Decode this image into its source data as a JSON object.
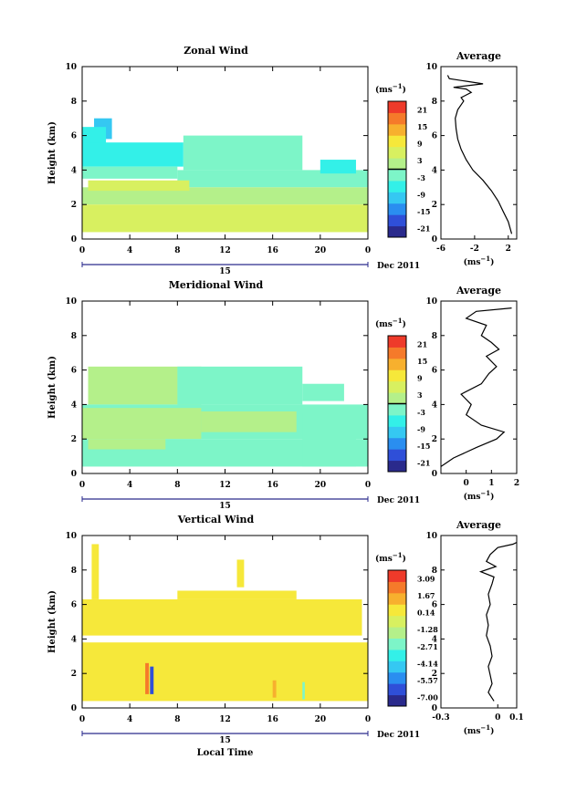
{
  "chart_data": [
    {
      "type": "heatmap",
      "title": "Zonal Wind",
      "xlabel": "",
      "ylabel": "Height (km)",
      "x_ticks": [
        "0",
        "4",
        "8",
        "12",
        "16",
        "20",
        "0"
      ],
      "y_ticks": [
        "0",
        "2",
        "4",
        "6",
        "8",
        "10"
      ],
      "xlim": [
        0,
        24
      ],
      "ylim": [
        0,
        10
      ],
      "date_day": "15",
      "date_label": "Dec 2011",
      "colorbar": {
        "unit": "(ms",
        "unit_exp": "−1",
        "unit_close": ")",
        "ticks": [
          "21",
          "15",
          "9",
          "3",
          "-3",
          "-9",
          "-15",
          "-21"
        ],
        "vmin": -24,
        "vmax": 24,
        "contour_at": 0
      },
      "cells": [
        {
          "t0": 1.0,
          "t1": 2.5,
          "h0": 5.8,
          "h1": 7.0,
          "v": -10
        },
        {
          "t0": 0.0,
          "t1": 2.0,
          "h0": 5.5,
          "h1": 6.5,
          "v": -8
        },
        {
          "t0": 0.0,
          "t1": 8.5,
          "h0": 4.2,
          "h1": 5.6,
          "v": -5
        },
        {
          "t0": 8.5,
          "t1": 18.5,
          "h0": 4.0,
          "h1": 6.0,
          "v": -3
        },
        {
          "t0": 0.0,
          "t1": 8.0,
          "h0": 3.5,
          "h1": 4.2,
          "v": -3
        },
        {
          "t0": 8.0,
          "t1": 24.0,
          "h0": 3.0,
          "h1": 4.0,
          "v": -4
        },
        {
          "t0": 20.0,
          "t1": 23.0,
          "h0": 3.8,
          "h1": 4.6,
          "v": -5
        },
        {
          "t0": 0.0,
          "t1": 24.0,
          "h0": 2.0,
          "h1": 3.0,
          "v": 3
        },
        {
          "t0": 0.0,
          "t1": 24.0,
          "h0": 0.4,
          "h1": 2.0,
          "v": 5
        },
        {
          "t0": 0.5,
          "t1": 9.0,
          "h0": 2.8,
          "h1": 3.4,
          "v": 5
        }
      ],
      "avg_profile": {
        "title": "Average",
        "x": [
          2.4,
          2.0,
          1.4,
          0.8,
          0.0,
          -1.0,
          -2.2,
          -3.0,
          -3.6,
          -4.0,
          -4.2,
          -4.3,
          -4.0,
          -3.3,
          -3.6,
          -2.4,
          -3.0,
          -4.5,
          -1.0,
          -5.0,
          -5.2
        ],
        "y": [
          0.3,
          1.0,
          1.6,
          2.2,
          2.8,
          3.4,
          4.0,
          4.6,
          5.2,
          5.8,
          6.4,
          7.0,
          7.5,
          8.0,
          8.2,
          8.5,
          8.7,
          8.8,
          9.0,
          9.3,
          9.5
        ],
        "x_ticks": [
          "-6",
          "-2",
          "2"
        ],
        "xlim": [
          -6,
          3
        ],
        "y_ticks": [
          "0",
          "2",
          "4",
          "6",
          "8",
          "10"
        ],
        "xlabel": "(ms",
        "xlabel_exp": "−1",
        "xlabel_close": ")"
      }
    },
    {
      "type": "heatmap",
      "title": "Meridional Wind",
      "xlabel": "",
      "ylabel": "Height (km)",
      "x_ticks": [
        "0",
        "4",
        "8",
        "12",
        "16",
        "20",
        "0"
      ],
      "y_ticks": [
        "0",
        "2",
        "4",
        "6",
        "8",
        "10"
      ],
      "xlim": [
        0,
        24
      ],
      "ylim": [
        0,
        10
      ],
      "date_day": "15",
      "date_label": "Dec 2011",
      "colorbar": {
        "unit": "(ms",
        "unit_exp": "−1",
        "unit_close": ")",
        "ticks": [
          "21",
          "15",
          "9",
          "3",
          "-3",
          "-9",
          "-15",
          "-21"
        ],
        "vmin": -24,
        "vmax": 24,
        "contour_at": 0
      },
      "cells": [
        {
          "t0": 0.5,
          "t1": 10.0,
          "h0": 4.0,
          "h1": 6.2,
          "v": 3
        },
        {
          "t0": 8.0,
          "t1": 18.5,
          "h0": 4.0,
          "h1": 6.2,
          "v": -3
        },
        {
          "t0": 18.5,
          "t1": 22.0,
          "h0": 4.2,
          "h1": 5.2,
          "v": -3
        },
        {
          "t0": 0.0,
          "t1": 24.0,
          "h0": 2.0,
          "h1": 4.0,
          "v": -2
        },
        {
          "t0": 0.0,
          "t1": 10.0,
          "h0": 2.0,
          "h1": 3.8,
          "v": 3
        },
        {
          "t0": 10.0,
          "t1": 18.0,
          "h0": 2.4,
          "h1": 3.6,
          "v": 2
        },
        {
          "t0": 0.0,
          "t1": 24.0,
          "h0": 0.4,
          "h1": 2.0,
          "v": -4
        },
        {
          "t0": 0.5,
          "t1": 7.0,
          "h0": 1.4,
          "h1": 2.0,
          "v": 2
        },
        {
          "t0": 18.5,
          "t1": 23.0,
          "h0": 0.4,
          "h1": 3.5,
          "v": -4
        }
      ],
      "avg_profile": {
        "title": "Average",
        "x": [
          -1.0,
          -0.5,
          0.4,
          1.2,
          1.5,
          0.6,
          0.0,
          0.2,
          -0.2,
          0.6,
          0.9,
          1.2,
          0.8,
          1.3,
          1.0,
          0.6,
          0.8,
          0.0,
          0.4,
          1.8
        ],
        "y": [
          0.4,
          0.9,
          1.5,
          2.0,
          2.4,
          2.8,
          3.4,
          4.0,
          4.6,
          5.2,
          5.8,
          6.2,
          6.8,
          7.2,
          7.6,
          8.0,
          8.6,
          9.0,
          9.4,
          9.6
        ],
        "x_ticks": [
          "0",
          "1",
          "2"
        ],
        "xlim": [
          -1,
          2
        ],
        "y_ticks": [
          "0",
          "2",
          "4",
          "6",
          "8",
          "10"
        ],
        "xlabel": "(ms",
        "xlabel_exp": "−1",
        "xlabel_close": ")"
      }
    },
    {
      "type": "heatmap",
      "title": "Vertical Wind",
      "xlabel": "Local Time",
      "ylabel": "Height (km)",
      "x_ticks": [
        "0",
        "4",
        "8",
        "12",
        "16",
        "20",
        "0"
      ],
      "y_ticks": [
        "0",
        "2",
        "4",
        "6",
        "8",
        "10"
      ],
      "xlim": [
        0,
        24
      ],
      "ylim": [
        0,
        10
      ],
      "date_day": "15",
      "date_label": "Dec 2011",
      "colorbar": {
        "unit": "(ms",
        "unit_exp": "−1",
        "unit_close": ")",
        "ticks": [
          "3.09",
          "1.67",
          "0.14",
          "-1.28",
          "-2.71",
          "-4.14",
          "-5.57",
          "-7.00"
        ],
        "vmin": -8.0,
        "vmax": 3.8,
        "contour_at": null
      },
      "cells": [
        {
          "t0": 0.0,
          "t1": 23.5,
          "h0": 4.2,
          "h1": 6.3,
          "v": 0.4
        },
        {
          "t0": 8.0,
          "t1": 18.0,
          "h0": 6.3,
          "h1": 6.8,
          "v": 0.4
        },
        {
          "t0": 0.0,
          "t1": 24.0,
          "h0": 0.4,
          "h1": 3.8,
          "v": 0.3
        },
        {
          "t0": 5.3,
          "t1": 5.6,
          "h0": 0.8,
          "h1": 2.6,
          "v": 2.2
        },
        {
          "t0": 5.7,
          "t1": 6.0,
          "h0": 0.8,
          "h1": 2.4,
          "v": -6.5
        },
        {
          "t0": 18.5,
          "t1": 18.7,
          "h0": 0.5,
          "h1": 1.5,
          "v": -3.0
        },
        {
          "t0": 16.0,
          "t1": 16.3,
          "h0": 0.6,
          "h1": 1.6,
          "v": 1.8
        },
        {
          "t0": 0.8,
          "t1": 1.4,
          "h0": 6.3,
          "h1": 9.5,
          "v": 0.4
        },
        {
          "t0": 13.0,
          "t1": 13.6,
          "h0": 7.0,
          "h1": 8.6,
          "v": 0.4
        }
      ],
      "avg_profile": {
        "title": "Average",
        "x": [
          -0.02,
          -0.05,
          -0.03,
          -0.04,
          -0.05,
          -0.03,
          -0.04,
          -0.06,
          -0.05,
          -0.06,
          -0.04,
          -0.05,
          -0.03,
          -0.02,
          -0.09,
          -0.01,
          -0.06,
          -0.04,
          0.0,
          0.08,
          0.1
        ],
        "y": [
          0.4,
          0.9,
          1.4,
          1.9,
          2.4,
          3.0,
          3.6,
          4.2,
          4.8,
          5.4,
          6.0,
          6.6,
          7.2,
          7.6,
          7.9,
          8.2,
          8.5,
          8.9,
          9.3,
          9.5,
          9.6
        ],
        "x_ticks": [
          "-0.3",
          "0",
          "0.1"
        ],
        "xlim": [
          -0.3,
          0.1
        ],
        "y_ticks": [
          "0",
          "2",
          "4",
          "6",
          "8",
          "10"
        ],
        "xlabel": "(ms",
        "xlabel_exp": "−1",
        "xlabel_close": ")"
      }
    }
  ]
}
